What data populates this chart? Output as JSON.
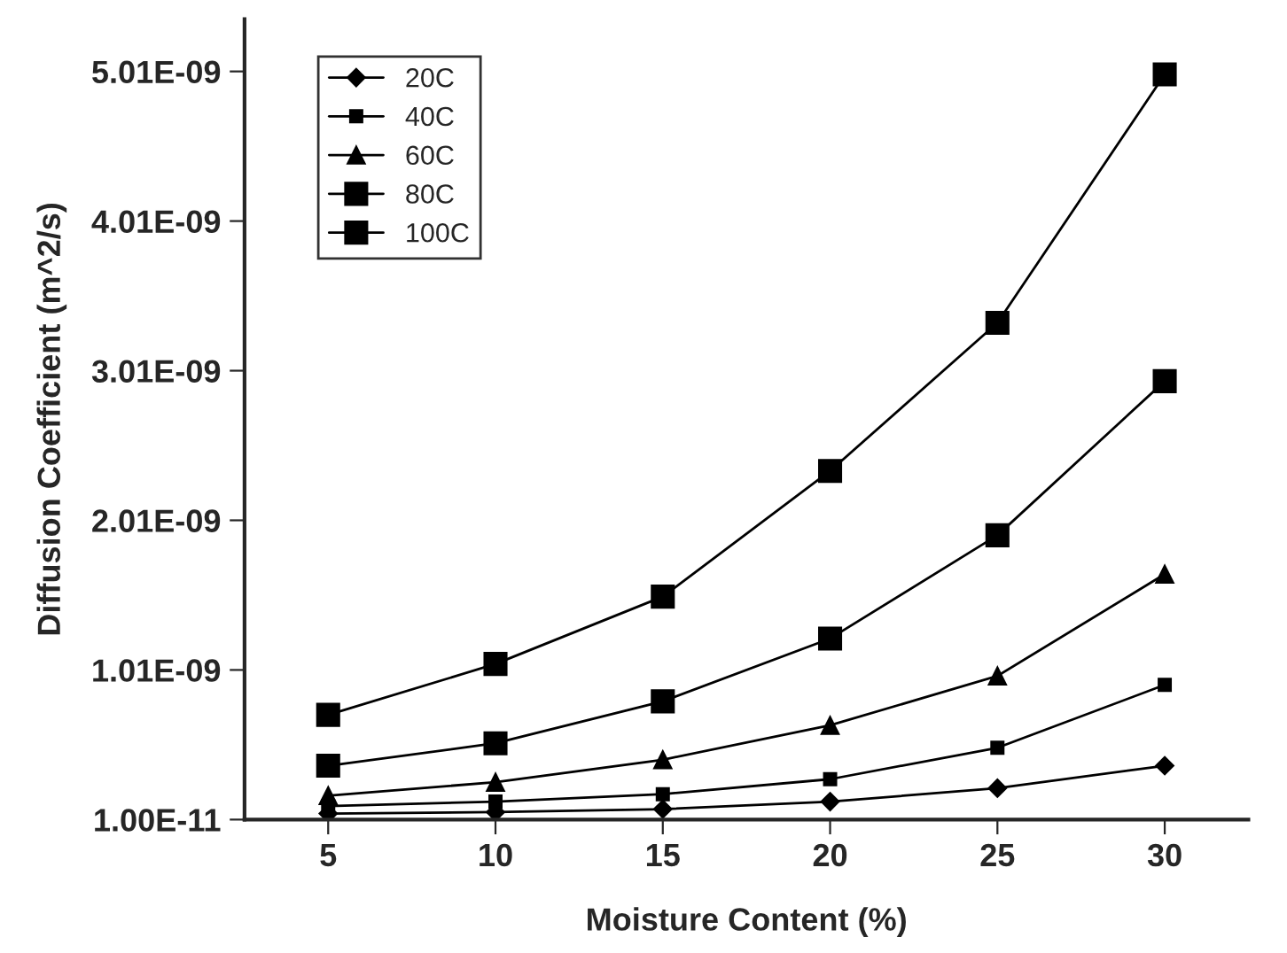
{
  "chart_data": {
    "type": "line",
    "xlabel": "Moisture Content (%)",
    "ylabel": "Diffusion Coefficient (m^2/s)",
    "x": [
      5,
      10,
      15,
      20,
      25,
      30
    ],
    "xlim": [
      2.5,
      32.5
    ],
    "xticks": [
      5,
      10,
      15,
      20,
      25,
      30
    ],
    "ylim": [
      1e-11,
      5.36e-09
    ],
    "yticks": [
      {
        "value": 1e-11,
        "label": "1.00E-11"
      },
      {
        "value": 1.01e-09,
        "label": "1.01E-09"
      },
      {
        "value": 2.01e-09,
        "label": "2.01E-09"
      },
      {
        "value": 3.01e-09,
        "label": "3.01E-09"
      },
      {
        "value": 4.01e-09,
        "label": "4.01E-09"
      },
      {
        "value": 5.01e-09,
        "label": "5.01E-09"
      }
    ],
    "grid": false,
    "legend": "top left",
    "line_style": "solid",
    "series": [
      {
        "name": "20C",
        "color": "#000000",
        "marker": "diamond",
        "values": [
          5e-11,
          6e-11,
          8e-11,
          1.3e-10,
          2.2e-10,
          3.7e-10
        ]
      },
      {
        "name": "40C",
        "color": "#000000",
        "marker": "square",
        "values": [
          1e-10,
          1.3e-10,
          1.8e-10,
          2.8e-10,
          4.9e-10,
          9.1e-10
        ]
      },
      {
        "name": "60C",
        "color": "#000000",
        "marker": "triangle",
        "values": [
          1.7e-10,
          2.6e-10,
          4.1e-10,
          6.4e-10,
          9.7e-10,
          1.65e-09
        ]
      },
      {
        "name": "80C",
        "color": "#000000",
        "marker": "square",
        "values": [
          3.7e-10,
          5.2e-10,
          8e-10,
          1.22e-09,
          1.91e-09,
          2.94e-09
        ]
      },
      {
        "name": "100C",
        "color": "#000000",
        "marker": "square",
        "values": [
          7.1e-10,
          1.05e-09,
          1.5e-09,
          2.34e-09,
          3.33e-09,
          4.99e-09
        ]
      }
    ]
  }
}
